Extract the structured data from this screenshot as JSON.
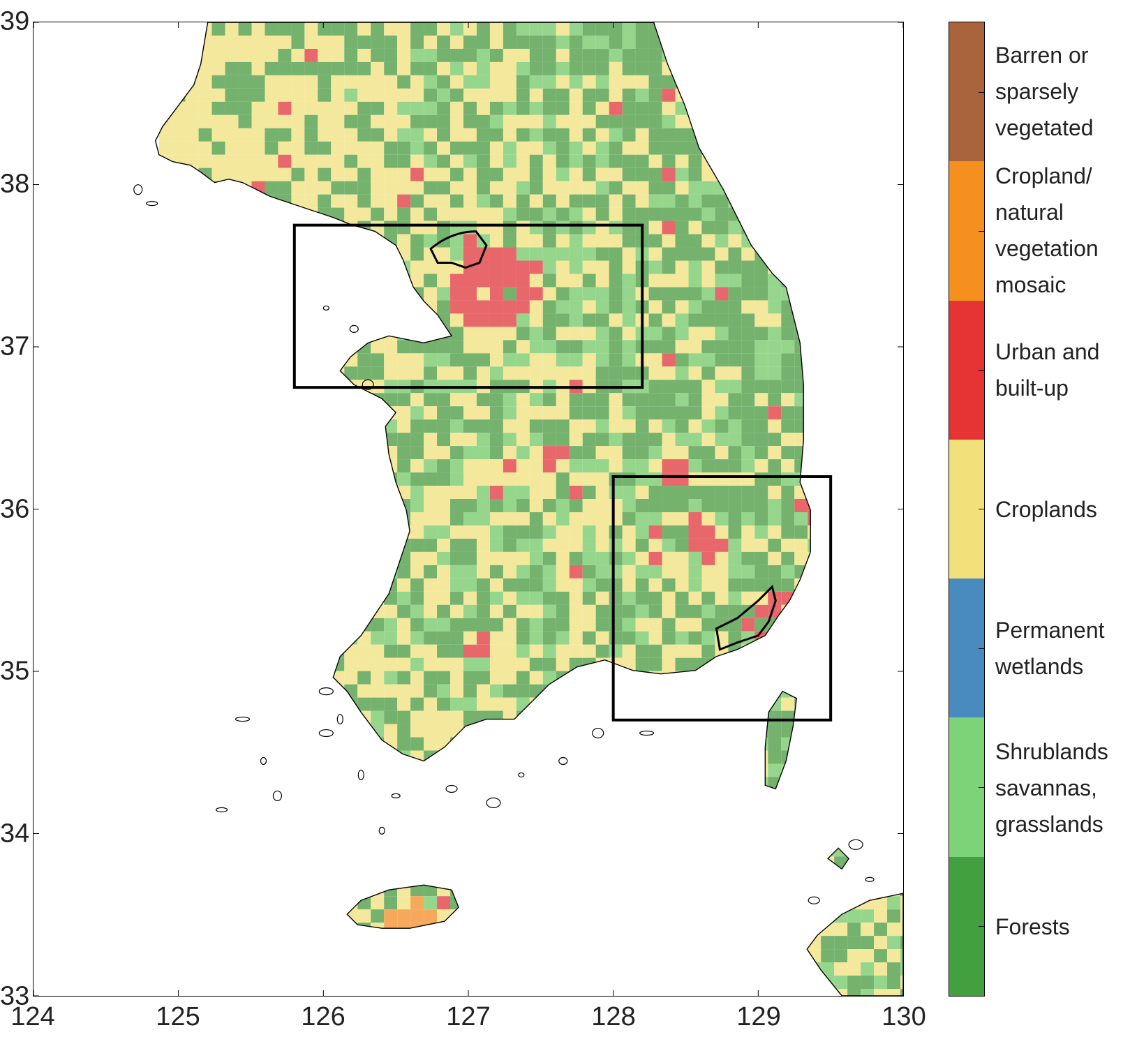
{
  "map": {
    "lon_range": [
      124,
      130
    ],
    "lat_range": [
      33,
      39
    ],
    "x_ticks": [
      "124",
      "125",
      "126",
      "127",
      "128",
      "129",
      "130"
    ],
    "y_ticks": [
      "39",
      "38",
      "37",
      "36",
      "35",
      "34",
      "33"
    ],
    "regions": [
      {
        "name": "",
        "lon": [
          125.8,
          128.2
        ],
        "lat": [
          36.75,
          37.75
        ]
      },
      {
        "name": "",
        "lon": [
          128.0,
          129.5
        ],
        "lat": [
          34.7,
          36.2
        ]
      }
    ]
  },
  "legend": {
    "colorbar": [
      {
        "label": "Barren or sparsely vegetated",
        "lines": [
          "Barren or",
          "sparsely",
          "vegetated"
        ],
        "color": "#a9643c"
      },
      {
        "label": "Cropland/ natural vegetation mosaic",
        "lines": [
          "Cropland/",
          "natural",
          "vegetation",
          "mosaic"
        ],
        "color": "#f5901e"
      },
      {
        "label": "Urban and built-up",
        "lines": [
          "Urban and",
          "built-up"
        ],
        "color": "#e63333"
      },
      {
        "label": "Croplands",
        "lines": [
          "Croplands"
        ],
        "color": "#f2e07a"
      },
      {
        "label": "Permanent wetlands",
        "lines": [
          "Permanent",
          "wetlands"
        ],
        "color": "#4a8bbf"
      },
      {
        "label": "Shrublands savannas, grasslands",
        "lines": [
          "Shrublands",
          "savannas,",
          "grasslands"
        ],
        "color": "#7dd378"
      },
      {
        "label": "Forests",
        "lines": [
          "Forests"
        ],
        "color": "#43a03e"
      }
    ]
  },
  "colors": {
    "forest_map": "#74b26e",
    "shrub_map": "#95d68c",
    "crop_map": "#f3e89b",
    "urban_map": "#e8676a",
    "mosaic_map": "#f6a95a",
    "wetland_map": "#4a8bbf",
    "coast": "#000000"
  }
}
